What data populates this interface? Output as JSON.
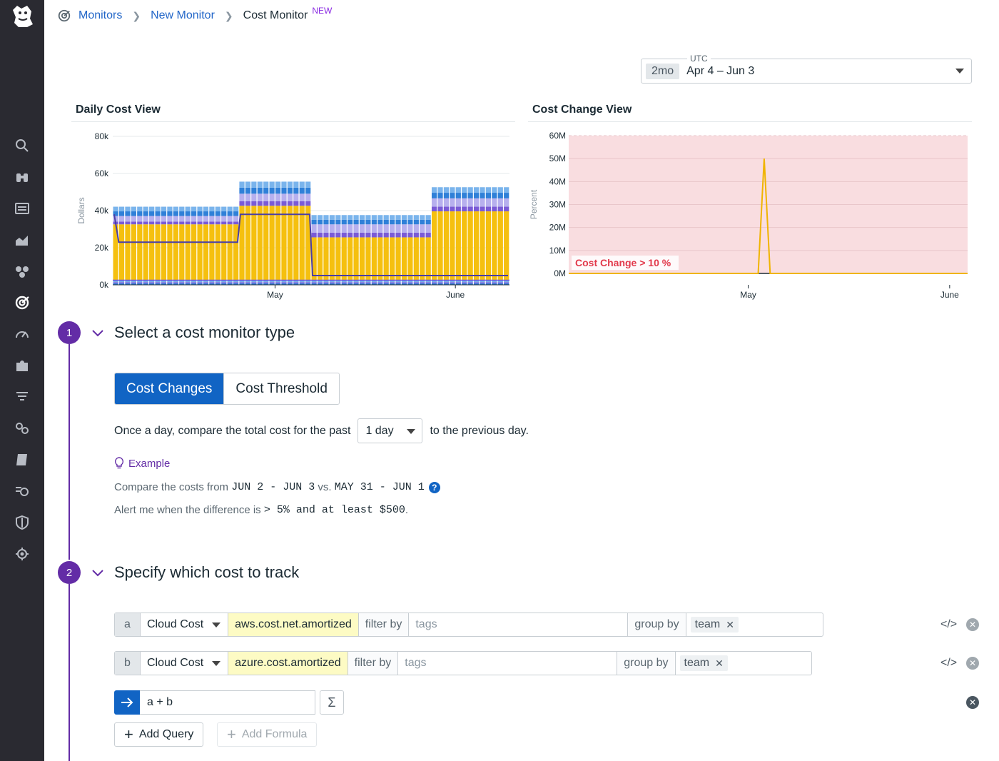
{
  "sidebar": {
    "icons": [
      "search-icon",
      "binoculars-icon",
      "list-icon",
      "chart-area-icon",
      "cubes-icon",
      "monitors-icon",
      "gauge-icon",
      "puzzle-icon",
      "filter-icon",
      "link-icon",
      "notebook-icon",
      "watchdog-icon",
      "shield-icon",
      "bug-icon"
    ]
  },
  "breadcrumb": {
    "items": [
      "Monitors",
      "New Monitor"
    ],
    "current": "Cost Monitor",
    "badge": "NEW"
  },
  "timepicker": {
    "timezone": "UTC",
    "span": "2mo",
    "range": "Apr 4 – Jun 3"
  },
  "charts": {
    "daily_title": "Daily Cost View",
    "change_title": "Cost Change View",
    "threshold_label": "Cost Change > 10 %"
  },
  "chart_data": [
    {
      "type": "bar",
      "title": "Daily Cost View",
      "ylabel": "Dollars",
      "ylim": [
        0,
        80000
      ],
      "yticks": [
        "0k",
        "20k",
        "40k",
        "60k",
        "80k"
      ],
      "xticks": [
        "May",
        "June"
      ],
      "stacked": true,
      "bar_groups": [
        {
          "days": 21,
          "yellow": 30000,
          "purple": 1500,
          "lavender": 3000,
          "blue": 5000
        },
        {
          "days": 12,
          "yellow": 40000,
          "purple": 2500,
          "lavender": 4000,
          "blue": 6500
        },
        {
          "days": 20,
          "yellow": 23000,
          "purple": 2500,
          "lavender": 4500,
          "blue": 5000
        },
        {
          "days": 13,
          "yellow": 37000,
          "purple": 2500,
          "lavender": 4500,
          "blue": 6000
        }
      ],
      "line_series": [
        {
          "name": "total",
          "color": "#4a3ea6",
          "values": [
            38000,
            23000,
            23000,
            37000,
            37000,
            37000,
            5000,
            5000,
            5000,
            5000
          ]
        }
      ],
      "colors": {
        "yellow": "#f5c00f",
        "purple": "#7a5bd6",
        "lavender": "#b7b0ee",
        "blue": "#2f80d8",
        "lightblue": "#7ab4ec"
      }
    },
    {
      "type": "line",
      "title": "Cost Change View",
      "ylabel": "Percent",
      "ylim": [
        0,
        60000000
      ],
      "yticks": [
        "0M",
        "10M",
        "20M",
        "30M",
        "40M",
        "50M",
        "60M"
      ],
      "xticks": [
        "May",
        "June"
      ],
      "series": [
        {
          "color": "#f0b400",
          "points": [
            [
              0,
              0
            ],
            [
              0.475,
              0
            ],
            [
              0.49,
              50000000
            ],
            [
              0.505,
              0
            ],
            [
              1,
              0
            ]
          ]
        }
      ],
      "threshold": {
        "label": "Cost Change > 10 %",
        "value": 10,
        "color": "#f9dde0"
      }
    }
  ],
  "step1": {
    "number": "1",
    "title": "Select a cost monitor type",
    "options": [
      "Cost Changes",
      "Cost Threshold"
    ],
    "selected": "Cost Changes",
    "sentence_before": "Once a day, compare the total cost for the past",
    "period": "1 day",
    "sentence_after": "to the previous day.",
    "example_label": "Example",
    "compare_prefix": "Compare the costs from ",
    "compare_range1": "JUN 2 - JUN 3",
    "compare_vs": " vs. ",
    "compare_range2": "MAY 31 - JUN 1",
    "alert_prefix": "Alert me when the difference is ",
    "alert_rule": "> 5% and at least $500",
    "alert_suffix": "."
  },
  "step2": {
    "number": "2",
    "title": "Specify which cost to track",
    "queries": [
      {
        "letter": "a",
        "source": "Cloud Cost",
        "metric": "aws.cost.net.amortized",
        "filter_label": "filter by",
        "filter_placeholder": "tags",
        "group_label": "group by",
        "group_tag": "team"
      },
      {
        "letter": "b",
        "source": "Cloud Cost",
        "metric": "azure.cost.amortized",
        "filter_label": "filter by",
        "filter_placeholder": "tags",
        "group_label": "group by",
        "group_tag": "team"
      }
    ],
    "formula": "a + b",
    "add_query": "Add Query",
    "add_formula": "Add Formula"
  }
}
